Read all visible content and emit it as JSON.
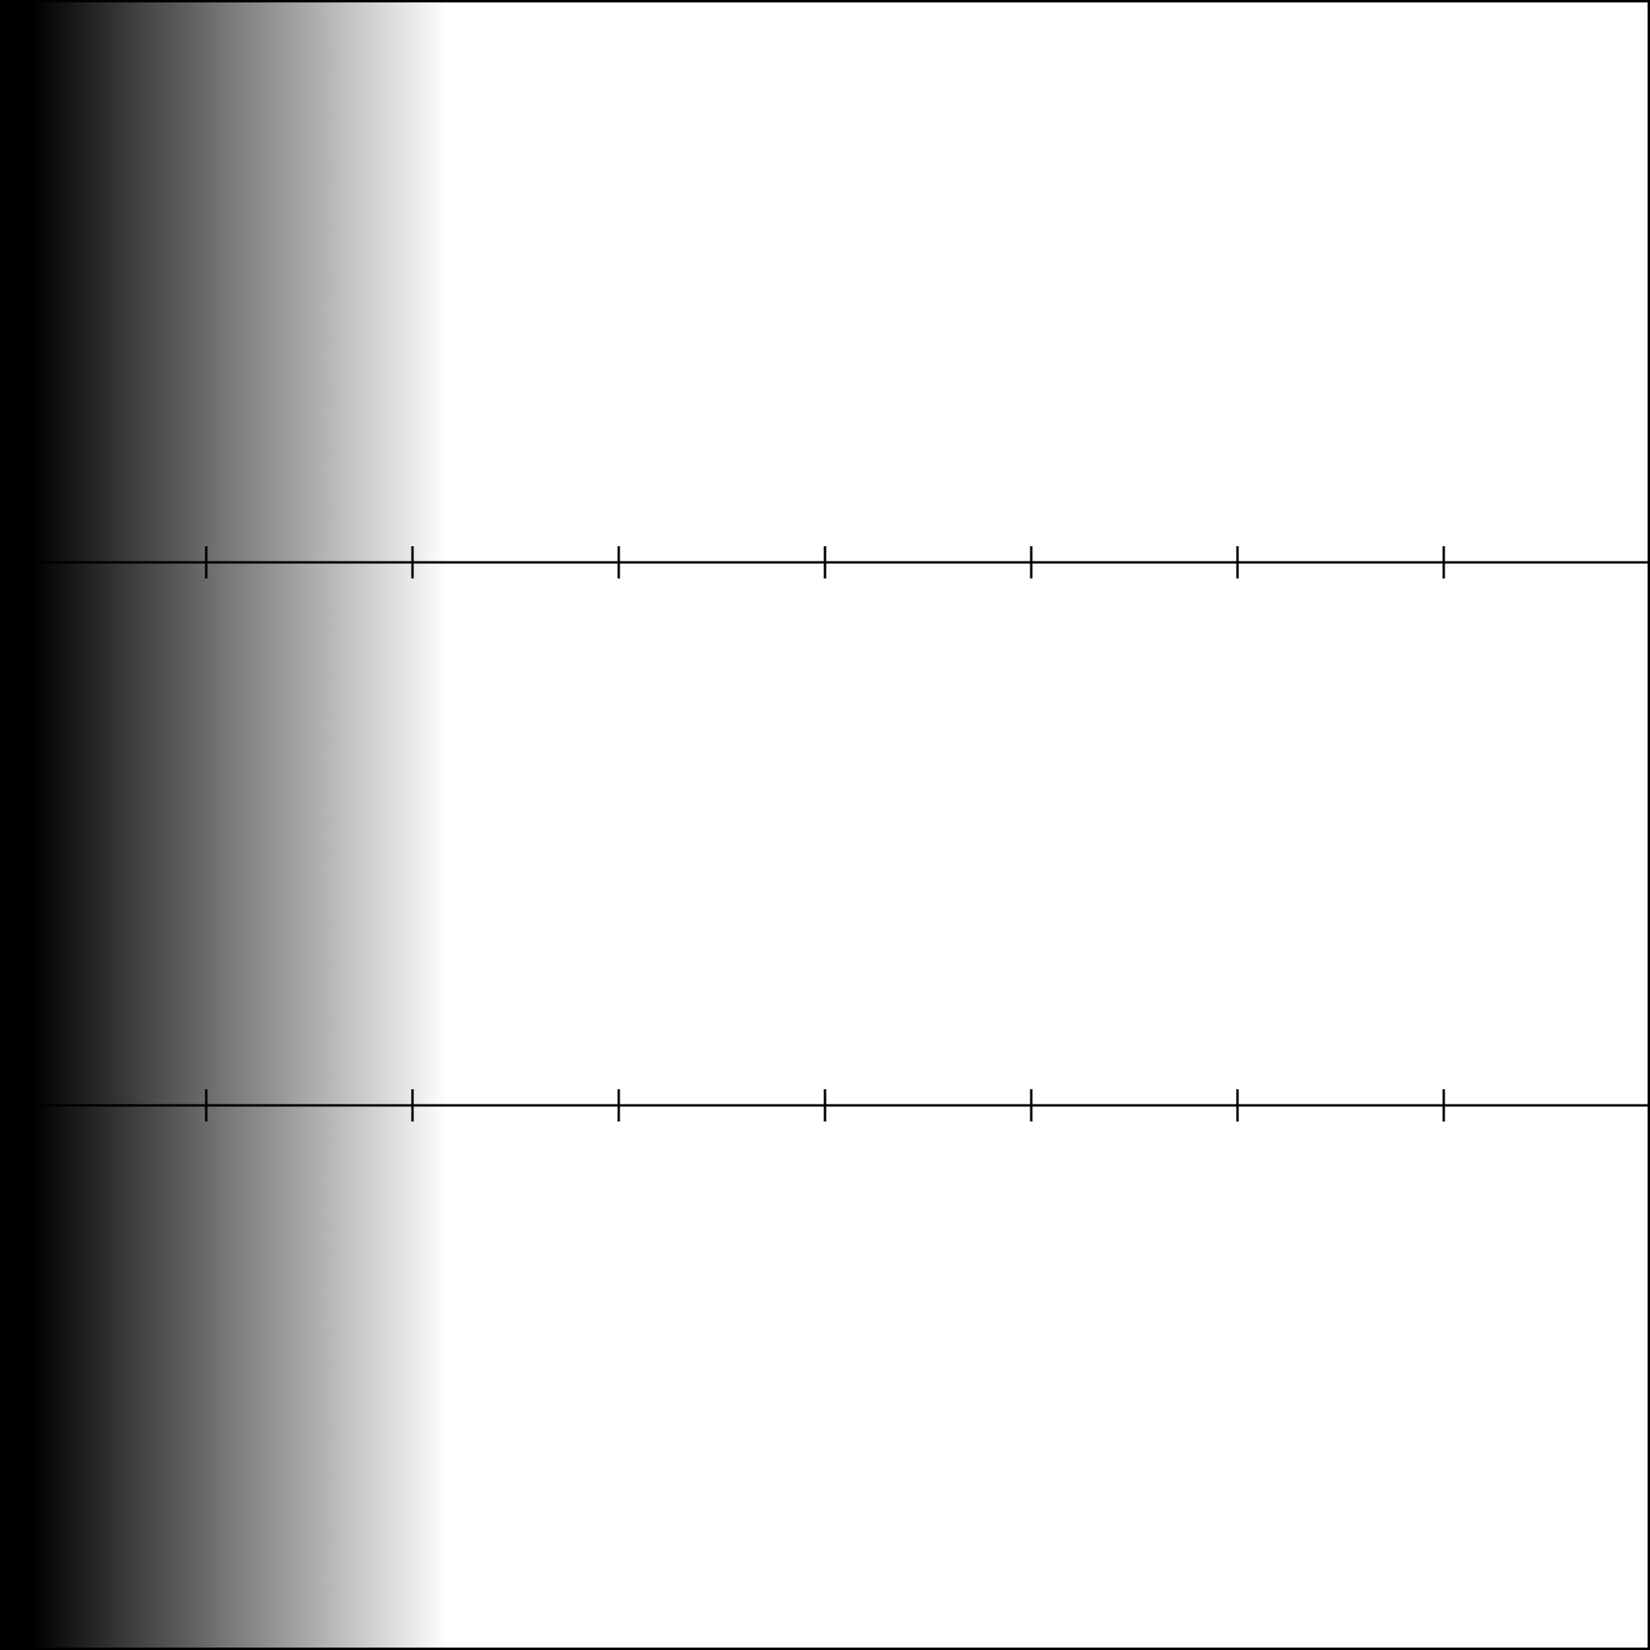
{
  "colors": {
    "background": "#ffffff",
    "line": "#000000",
    "gradient_dark": "#000000",
    "gradient_light": "#ffffff"
  },
  "frame": {
    "border_color": "#000000"
  },
  "gradient_band": {
    "direction": "left-to-right",
    "from_color": "#000000",
    "to_color": "#ffffff"
  },
  "scale_lines": [
    {
      "name": "upper-scale-line",
      "tick_count": 7
    },
    {
      "name": "lower-scale-line",
      "tick_count": 7
    }
  ]
}
